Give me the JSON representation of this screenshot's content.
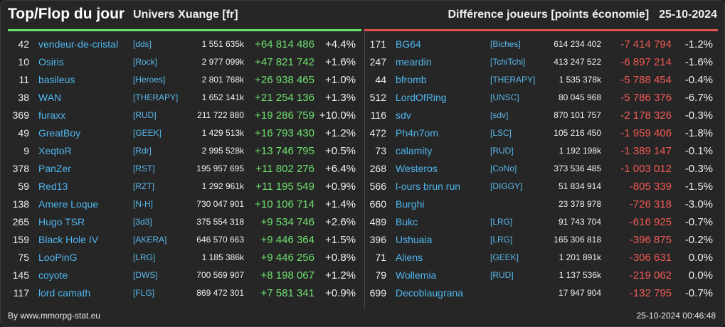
{
  "header": {
    "title": "Top/Flop du jour",
    "subtitle": "Univers Xuange [fr]",
    "right_title": "Différence joueurs [points économie]",
    "date": "25-10-2024"
  },
  "colors": {
    "positive": "#6fe06f",
    "negative": "#ef5a54",
    "link": "#4fb6ee",
    "top_bar": "#66e066",
    "flop_bar": "#e0504a"
  },
  "top": [
    {
      "rank": "42",
      "name": "vendeur-de-cristal",
      "guild": "[dds]",
      "points": "1 551 635k",
      "diff": "+64 814 486",
      "pct": "+4.4%"
    },
    {
      "rank": "10",
      "name": "Osiris",
      "guild": "[Rock]",
      "points": "2 977 099k",
      "diff": "+47 821 742",
      "pct": "+1.6%"
    },
    {
      "rank": "11",
      "name": "basileus",
      "guild": "[Heroes]",
      "points": "2 801 768k",
      "diff": "+26 938 465",
      "pct": "+1.0%"
    },
    {
      "rank": "38",
      "name": "WAN",
      "guild": "[THERAPY]",
      "points": "1 652 141k",
      "diff": "+21 254 136",
      "pct": "+1.3%"
    },
    {
      "rank": "369",
      "name": "furaxx",
      "guild": "[RUD]",
      "points": "211 722 880",
      "diff": "+19 286 759",
      "pct": "+10.0%"
    },
    {
      "rank": "49",
      "name": "GreatBoy",
      "guild": "[GEEK]",
      "points": "1 429 513k",
      "diff": "+16 793 430",
      "pct": "+1.2%"
    },
    {
      "rank": "9",
      "name": "XeqtoR",
      "guild": "[Rdr]",
      "points": "2 995 528k",
      "diff": "+13 746 795",
      "pct": "+0.5%"
    },
    {
      "rank": "378",
      "name": "PanZer",
      "guild": "[RST]",
      "points": "195 957 695",
      "diff": "+11 802 276",
      "pct": "+6.4%"
    },
    {
      "rank": "59",
      "name": "Red13",
      "guild": "[RZT]",
      "points": "1 292 961k",
      "diff": "+11 195 549",
      "pct": "+0.9%"
    },
    {
      "rank": "138",
      "name": "Amere Loque",
      "guild": "[N-H]",
      "points": "730 047 901",
      "diff": "+10 106 714",
      "pct": "+1.4%"
    },
    {
      "rank": "265",
      "name": "Hugo TSR",
      "guild": "[3d3]",
      "points": "375 554 318",
      "diff": "+9 534 746",
      "pct": "+2.6%"
    },
    {
      "rank": "159",
      "name": "Black Hole IV",
      "guild": "[AKERA]",
      "points": "646 570 663",
      "diff": "+9 446 364",
      "pct": "+1.5%"
    },
    {
      "rank": "75",
      "name": "LooPinG",
      "guild": "[LRG]",
      "points": "1 185 386k",
      "diff": "+9 446 256",
      "pct": "+0.8%"
    },
    {
      "rank": "145",
      "name": "coyote",
      "guild": "[DWS]",
      "points": "700 569 907",
      "diff": "+8 198 067",
      "pct": "+1.2%"
    },
    {
      "rank": "117",
      "name": "lord camath",
      "guild": "[FLG]",
      "points": "869 472 301",
      "diff": "+7 581 341",
      "pct": "+0.9%"
    }
  ],
  "flop": [
    {
      "rank": "171",
      "name": "BG64",
      "guild": "[Biches]",
      "points": "614 234 402",
      "diff": "-7 414 794",
      "pct": "-1.2%"
    },
    {
      "rank": "247",
      "name": "meardin",
      "guild": "[TchiTchi]",
      "points": "413 247 522",
      "diff": "-6 897 214",
      "pct": "-1.6%"
    },
    {
      "rank": "44",
      "name": "bfromb",
      "guild": "[THERAPY]",
      "points": "1 535 378k",
      "diff": "-5 788 454",
      "pct": "-0.4%"
    },
    {
      "rank": "512",
      "name": "LordOfRing",
      "guild": "[UNSC]",
      "points": "80 045 968",
      "diff": "-5 786 376",
      "pct": "-6.7%"
    },
    {
      "rank": "116",
      "name": "sdv",
      "guild": "[sdv]",
      "points": "870 101 757",
      "diff": "-2 178 326",
      "pct": "-0.3%"
    },
    {
      "rank": "472",
      "name": "Ph4n7om",
      "guild": "[LSC]",
      "points": "105 216 450",
      "diff": "-1 959 406",
      "pct": "-1.8%"
    },
    {
      "rank": "73",
      "name": "calamity",
      "guild": "[RUD]",
      "points": "1 192 198k",
      "diff": "-1 389 147",
      "pct": "-0.1%"
    },
    {
      "rank": "268",
      "name": "Westeros",
      "guild": "[CoNo]",
      "points": "373 536 485",
      "diff": "-1 003 012",
      "pct": "-0.3%"
    },
    {
      "rank": "566",
      "name": "l-ours brun run",
      "guild": "[DIGGY]",
      "points": "51 834 914",
      "diff": "-805 339",
      "pct": "-1.5%"
    },
    {
      "rank": "660",
      "name": "Burghi",
      "guild": "",
      "points": "23 378 978",
      "diff": "-726 318",
      "pct": "-3.0%"
    },
    {
      "rank": "489",
      "name": "Bukc",
      "guild": "[LRG]",
      "points": "91 743 704",
      "diff": "-616 925",
      "pct": "-0.7%"
    },
    {
      "rank": "396",
      "name": "Ushuaia",
      "guild": "[LRG]",
      "points": "165 306 818",
      "diff": "-396 875",
      "pct": "-0.2%"
    },
    {
      "rank": "71",
      "name": "Aliens",
      "guild": "[GEEK]",
      "points": "1 201 891k",
      "diff": "-306 631",
      "pct": "0.0%"
    },
    {
      "rank": "79",
      "name": "Wollemia",
      "guild": "[RUD]",
      "points": "1 137 536k",
      "diff": "-219 062",
      "pct": "0.0%"
    },
    {
      "rank": "699",
      "name": "Decoblaugrana",
      "guild": "",
      "points": "17 947 904",
      "diff": "-132 795",
      "pct": "-0.7%"
    }
  ],
  "footer": {
    "credit": "By www.mmorpg-stat.eu",
    "timestamp": "25-10-2024 00:46:48"
  }
}
